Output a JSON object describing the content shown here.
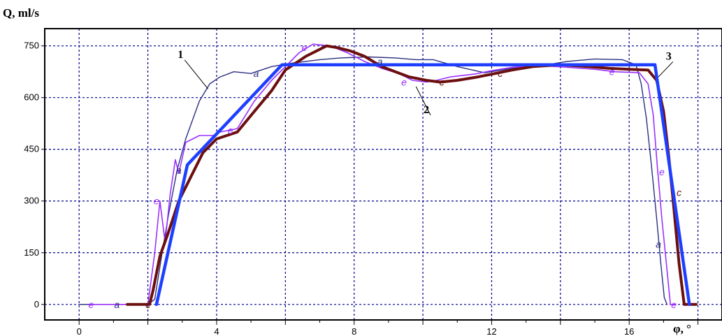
{
  "chart_data": {
    "type": "line",
    "ylabel": "Q, ml/s",
    "xlabel": "φ, °",
    "xlim": [
      -1,
      18.7
    ],
    "ylim": [
      -45,
      800
    ],
    "xticks": [
      0,
      4,
      8,
      12,
      16
    ],
    "yticks": [
      0,
      150,
      300,
      450,
      600,
      750
    ],
    "x_tick_labels": [
      "0",
      "4",
      "8",
      "12",
      "16"
    ],
    "y_tick_labels": [
      "0",
      "150",
      "300",
      "450",
      "600",
      "750"
    ],
    "grid": true,
    "legend": "none",
    "colors": {
      "frame": "#000000",
      "grid": "#00008b",
      "series_a": "#2b2d80",
      "series_c": "#6b0f0f",
      "series_e": "#9b30ff",
      "series_3": "#1f3fff"
    },
    "series": [
      {
        "id": "a",
        "color": "#2b2d80",
        "points": [
          [
            0,
            0
          ],
          [
            1.0,
            0
          ],
          [
            2.0,
            0
          ],
          [
            2.2,
            15
          ],
          [
            2.4,
            140
          ],
          [
            2.6,
            260
          ],
          [
            2.85,
            390
          ],
          [
            3.1,
            480
          ],
          [
            3.5,
            590
          ],
          [
            3.8,
            640
          ],
          [
            4.1,
            660
          ],
          [
            4.5,
            675
          ],
          [
            5.0,
            670
          ],
          [
            5.6,
            690
          ],
          [
            6.2,
            700
          ],
          [
            7.0,
            710
          ],
          [
            7.6,
            715
          ],
          [
            8.4,
            718
          ],
          [
            9.2,
            715
          ],
          [
            9.8,
            710
          ],
          [
            10.3,
            710
          ],
          [
            11.0,
            690
          ],
          [
            11.8,
            672
          ],
          [
            12.6,
            685
          ],
          [
            13.4,
            692
          ],
          [
            14.2,
            705
          ],
          [
            15.0,
            712
          ],
          [
            15.8,
            710
          ],
          [
            16.2,
            695
          ],
          [
            16.35,
            640
          ],
          [
            16.5,
            540
          ],
          [
            16.65,
            400
          ],
          [
            16.8,
            250
          ],
          [
            16.92,
            120
          ],
          [
            17.02,
            20
          ],
          [
            17.1,
            0
          ]
        ]
      },
      {
        "id": "c",
        "color": "#6b0f0f",
        "points": [
          [
            1.4,
            0
          ],
          [
            2.05,
            0
          ],
          [
            2.15,
            40
          ],
          [
            2.35,
            140
          ],
          [
            2.6,
            210
          ],
          [
            2.9,
            300
          ],
          [
            3.2,
            360
          ],
          [
            3.6,
            440
          ],
          [
            4.0,
            480
          ],
          [
            4.6,
            500
          ],
          [
            5.1,
            560
          ],
          [
            5.6,
            620
          ],
          [
            6.0,
            680
          ],
          [
            6.6,
            720
          ],
          [
            7.2,
            750
          ],
          [
            7.5,
            745
          ],
          [
            7.9,
            735
          ],
          [
            8.3,
            720
          ],
          [
            8.8,
            690
          ],
          [
            9.2,
            675
          ],
          [
            9.6,
            660
          ],
          [
            10.1,
            650
          ],
          [
            10.5,
            645
          ],
          [
            11.0,
            650
          ],
          [
            11.6,
            660
          ],
          [
            12.1,
            670
          ],
          [
            12.6,
            680
          ],
          [
            13.2,
            690
          ],
          [
            14.0,
            695
          ],
          [
            14.8,
            690
          ],
          [
            15.4,
            685
          ],
          [
            16.0,
            682
          ],
          [
            16.55,
            680
          ],
          [
            16.8,
            650
          ],
          [
            17.0,
            560
          ],
          [
            17.15,
            430
          ],
          [
            17.3,
            280
          ],
          [
            17.45,
            120
          ],
          [
            17.6,
            0
          ],
          [
            17.95,
            0
          ]
        ]
      },
      {
        "id": "e",
        "color": "#9b30ff",
        "points": [
          [
            0.3,
            0
          ],
          [
            1.0,
            0
          ],
          [
            2.0,
            0
          ],
          [
            2.2,
            150
          ],
          [
            2.35,
            300
          ],
          [
            2.5,
            180
          ],
          [
            2.65,
            320
          ],
          [
            2.8,
            420
          ],
          [
            2.9,
            380
          ],
          [
            3.1,
            470
          ],
          [
            3.5,
            490
          ],
          [
            3.9,
            490
          ],
          [
            4.1,
            500
          ],
          [
            4.6,
            510
          ],
          [
            5.1,
            590
          ],
          [
            5.6,
            650
          ],
          [
            6.0,
            690
          ],
          [
            6.4,
            730
          ],
          [
            6.8,
            755
          ],
          [
            7.3,
            750
          ],
          [
            7.8,
            730
          ],
          [
            8.3,
            705
          ],
          [
            8.8,
            685
          ],
          [
            9.3,
            670
          ],
          [
            9.7,
            650
          ],
          [
            10.1,
            645
          ],
          [
            10.4,
            650
          ],
          [
            10.8,
            660
          ],
          [
            11.5,
            668
          ],
          [
            12.0,
            678
          ],
          [
            12.6,
            688
          ],
          [
            13.4,
            693
          ],
          [
            14.2,
            688
          ],
          [
            15.0,
            682
          ],
          [
            15.6,
            675
          ],
          [
            16.3,
            672
          ],
          [
            16.55,
            640
          ],
          [
            16.7,
            550
          ],
          [
            16.82,
            400
          ],
          [
            16.95,
            250
          ],
          [
            17.1,
            100
          ],
          [
            17.2,
            0
          ],
          [
            17.35,
            0
          ]
        ]
      },
      {
        "id": "3",
        "color": "#1f3fff",
        "points": [
          [
            2.25,
            0
          ],
          [
            3.15,
            405
          ],
          [
            5.9,
            695
          ],
          [
            16.75,
            695
          ],
          [
            17.75,
            0
          ]
        ]
      }
    ],
    "series_markers": [
      {
        "label": "a",
        "series": "a",
        "x": 1.1,
        "y": 0
      },
      {
        "label": "a",
        "series": "a",
        "x": 5.15,
        "y": 670
      },
      {
        "label": "a",
        "series": "a",
        "x": 2.9,
        "y": 390
      },
      {
        "label": "a",
        "series": "a",
        "x": 8.75,
        "y": 705
      },
      {
        "label": "a",
        "series": "a",
        "x": 16.85,
        "y": 175
      },
      {
        "label": "c",
        "series": "c",
        "x": 2.0,
        "y": 0
      },
      {
        "label": "c",
        "series": "c",
        "x": 10.55,
        "y": 645
      },
      {
        "label": "c",
        "series": "c",
        "x": 12.25,
        "y": 670
      },
      {
        "label": "c",
        "series": "c",
        "x": 17.45,
        "y": 325
      },
      {
        "label": "e",
        "series": "e",
        "x": 0.35,
        "y": 0
      },
      {
        "label": "e",
        "series": "e",
        "x": 2.25,
        "y": 300
      },
      {
        "label": "e",
        "series": "e",
        "x": 4.4,
        "y": 505
      },
      {
        "label": "e",
        "series": "e",
        "x": 6.55,
        "y": 745
      },
      {
        "label": "e",
        "series": "e",
        "x": 9.45,
        "y": 645
      },
      {
        "label": "e",
        "series": "e",
        "x": 15.5,
        "y": 675
      },
      {
        "label": "e",
        "series": "e",
        "x": 16.95,
        "y": 385
      },
      {
        "label": "e",
        "series": "e",
        "x": 17.3,
        "y": 0
      }
    ],
    "annotations": [
      {
        "text": "1",
        "x": 2.95,
        "y": 715,
        "target": [
          3.75,
          625
        ]
      },
      {
        "text": "2",
        "x": 10.1,
        "y": 555,
        "target": [
          9.8,
          632
        ]
      },
      {
        "text": "3",
        "x": 17.15,
        "y": 710,
        "target": [
          16.85,
          660
        ]
      }
    ]
  }
}
